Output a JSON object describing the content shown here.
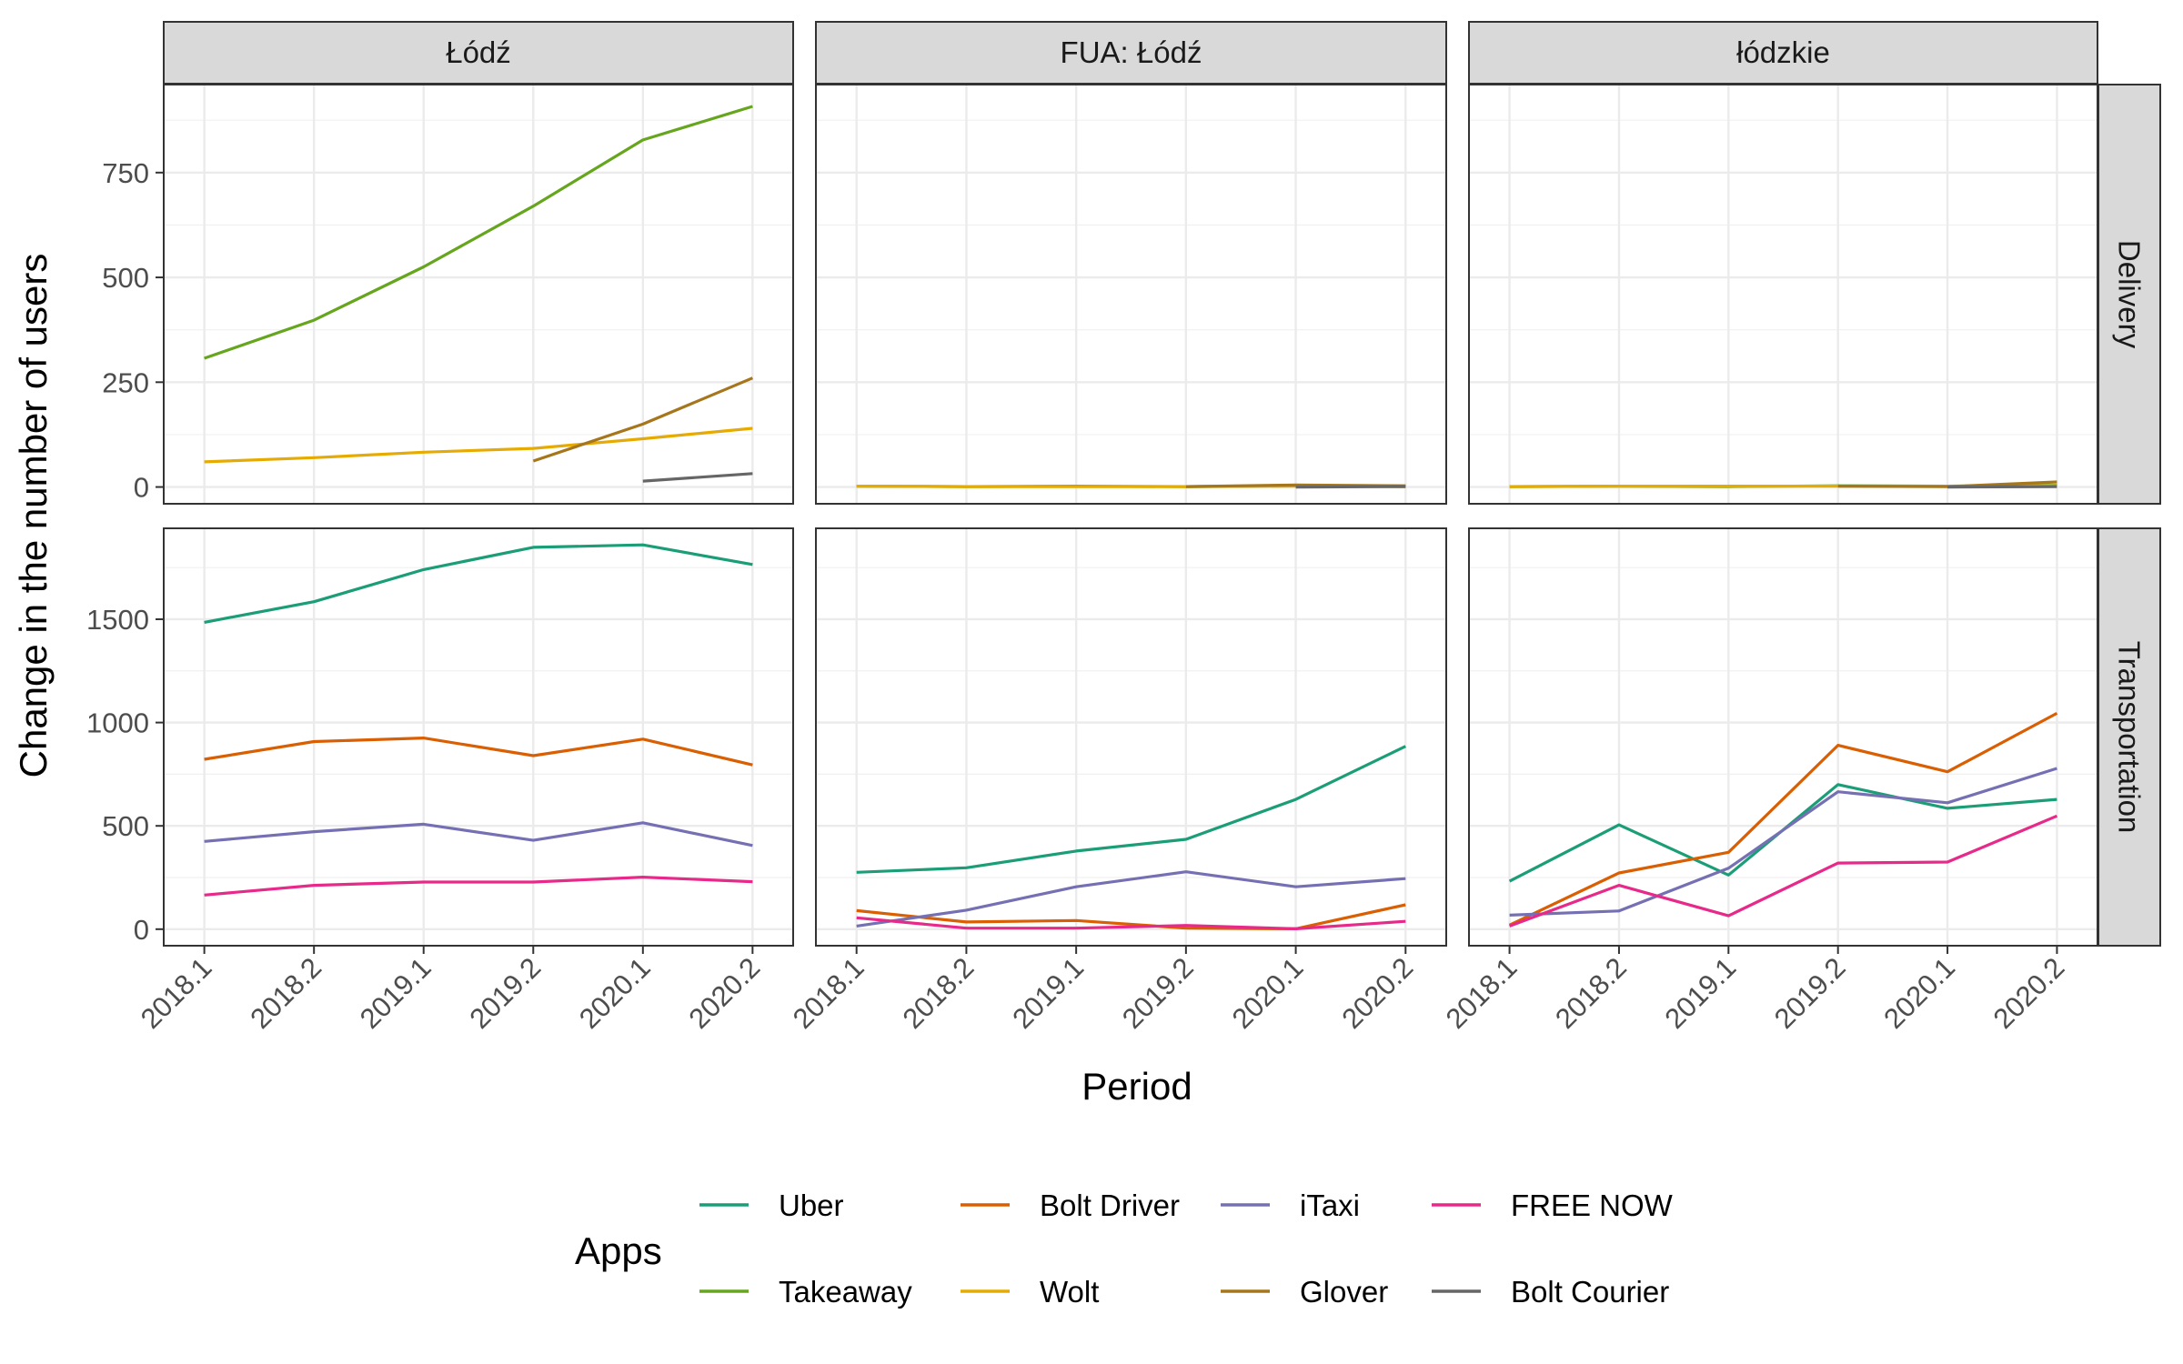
{
  "chart_data": {
    "type": "line",
    "x": [
      "2018.1",
      "2018.2",
      "2019.1",
      "2019.2",
      "2020.1",
      "2020.2"
    ],
    "xlabel": "Period",
    "ylabel": "Change in the number of users",
    "columns": [
      "Łódź",
      "FUA: Łódź",
      "łódzkie"
    ],
    "rows": [
      "Delivery",
      "Transportation"
    ],
    "row_axes": [
      {
        "ylim": [
          -40,
          960
        ],
        "ticks": [
          0,
          250,
          500,
          750
        ]
      },
      {
        "ylim": [
          -80,
          1940
        ],
        "ticks": [
          0,
          500,
          1000,
          1500
        ]
      }
    ],
    "legend": {
      "title": "Apps",
      "position": "bottom",
      "entries": [
        "Uber",
        "Bolt Driver",
        "iTaxi",
        "FREE NOW",
        "Takeaway",
        "Wolt",
        "Glover",
        "Bolt Courier"
      ]
    },
    "colors": {
      "Uber": "#1B9E77",
      "Bolt Driver": "#D95F02",
      "iTaxi": "#7570B3",
      "FREE NOW": "#E7298A",
      "Takeaway": "#66A61E",
      "Wolt": "#E6AB02",
      "Glover": "#A6761D",
      "Bolt Courier": "#666666"
    },
    "panels": [
      {
        "column": "Łódź",
        "row": "Delivery",
        "series": [
          {
            "name": "Takeaway",
            "values": [
              307,
              398,
              525,
              670,
              828,
              908
            ]
          },
          {
            "name": "Wolt",
            "values": [
              60,
              70,
              83,
              92,
              115,
              140
            ]
          },
          {
            "name": "Glover",
            "values": [
              null,
              null,
              null,
              62,
              150,
              260
            ]
          },
          {
            "name": "Bolt Courier",
            "values": [
              null,
              null,
              null,
              null,
              14,
              32
            ]
          }
        ]
      },
      {
        "column": "FUA: Łódź",
        "row": "Delivery",
        "series": [
          {
            "name": "Takeaway",
            "values": [
              2,
              1,
              2,
              1,
              3,
              2
            ]
          },
          {
            "name": "Wolt",
            "values": [
              2,
              1,
              1,
              1,
              2,
              1
            ]
          },
          {
            "name": "Glover",
            "values": [
              null,
              null,
              null,
              1,
              5,
              3
            ]
          },
          {
            "name": "Bolt Courier",
            "values": [
              null,
              null,
              null,
              null,
              0,
              1
            ]
          }
        ]
      },
      {
        "column": "łódzkie",
        "row": "Delivery",
        "series": [
          {
            "name": "Takeaway",
            "values": [
              1,
              2,
              1,
              3,
              2,
              4
            ]
          },
          {
            "name": "Wolt",
            "values": [
              1,
              2,
              2,
              2,
              2,
              3
            ]
          },
          {
            "name": "Glover",
            "values": [
              null,
              null,
              null,
              2,
              1,
              12
            ]
          },
          {
            "name": "Bolt Courier",
            "values": [
              null,
              null,
              null,
              null,
              0,
              1
            ]
          }
        ]
      },
      {
        "column": "Łódź",
        "row": "Transportation",
        "series": [
          {
            "name": "Uber",
            "values": [
              1485,
              1585,
              1740,
              1848,
              1860,
              1765
            ]
          },
          {
            "name": "Bolt Driver",
            "values": [
              822,
              908,
              925,
              840,
              920,
              795
            ]
          },
          {
            "name": "iTaxi",
            "values": [
              425,
              472,
              508,
              430,
              515,
              405
            ]
          },
          {
            "name": "FREE NOW",
            "values": [
              165,
              212,
              228,
              228,
              252,
              230
            ]
          }
        ]
      },
      {
        "column": "FUA: Łódź",
        "row": "Transportation",
        "series": [
          {
            "name": "Uber",
            "values": [
              275,
              297,
              378,
              435,
              628,
              885
            ]
          },
          {
            "name": "Bolt Driver",
            "values": [
              90,
              35,
              42,
              5,
              2,
              118
            ]
          },
          {
            "name": "iTaxi",
            "values": [
              15,
              92,
              205,
              278,
              205,
              245
            ]
          },
          {
            "name": "FREE NOW",
            "values": [
              55,
              5,
              5,
              18,
              2,
              38
            ]
          }
        ]
      },
      {
        "column": "łódzkie",
        "row": "Transportation",
        "series": [
          {
            "name": "Uber",
            "values": [
              232,
              505,
              262,
              700,
              585,
              628
            ]
          },
          {
            "name": "Bolt Driver",
            "values": [
              20,
              272,
              372,
              890,
              762,
              1045
            ]
          },
          {
            "name": "iTaxi",
            "values": [
              68,
              88,
              295,
              665,
              612,
              778
            ]
          },
          {
            "name": "FREE NOW",
            "values": [
              15,
              212,
              65,
              320,
              325,
              548
            ]
          }
        ]
      }
    ]
  }
}
